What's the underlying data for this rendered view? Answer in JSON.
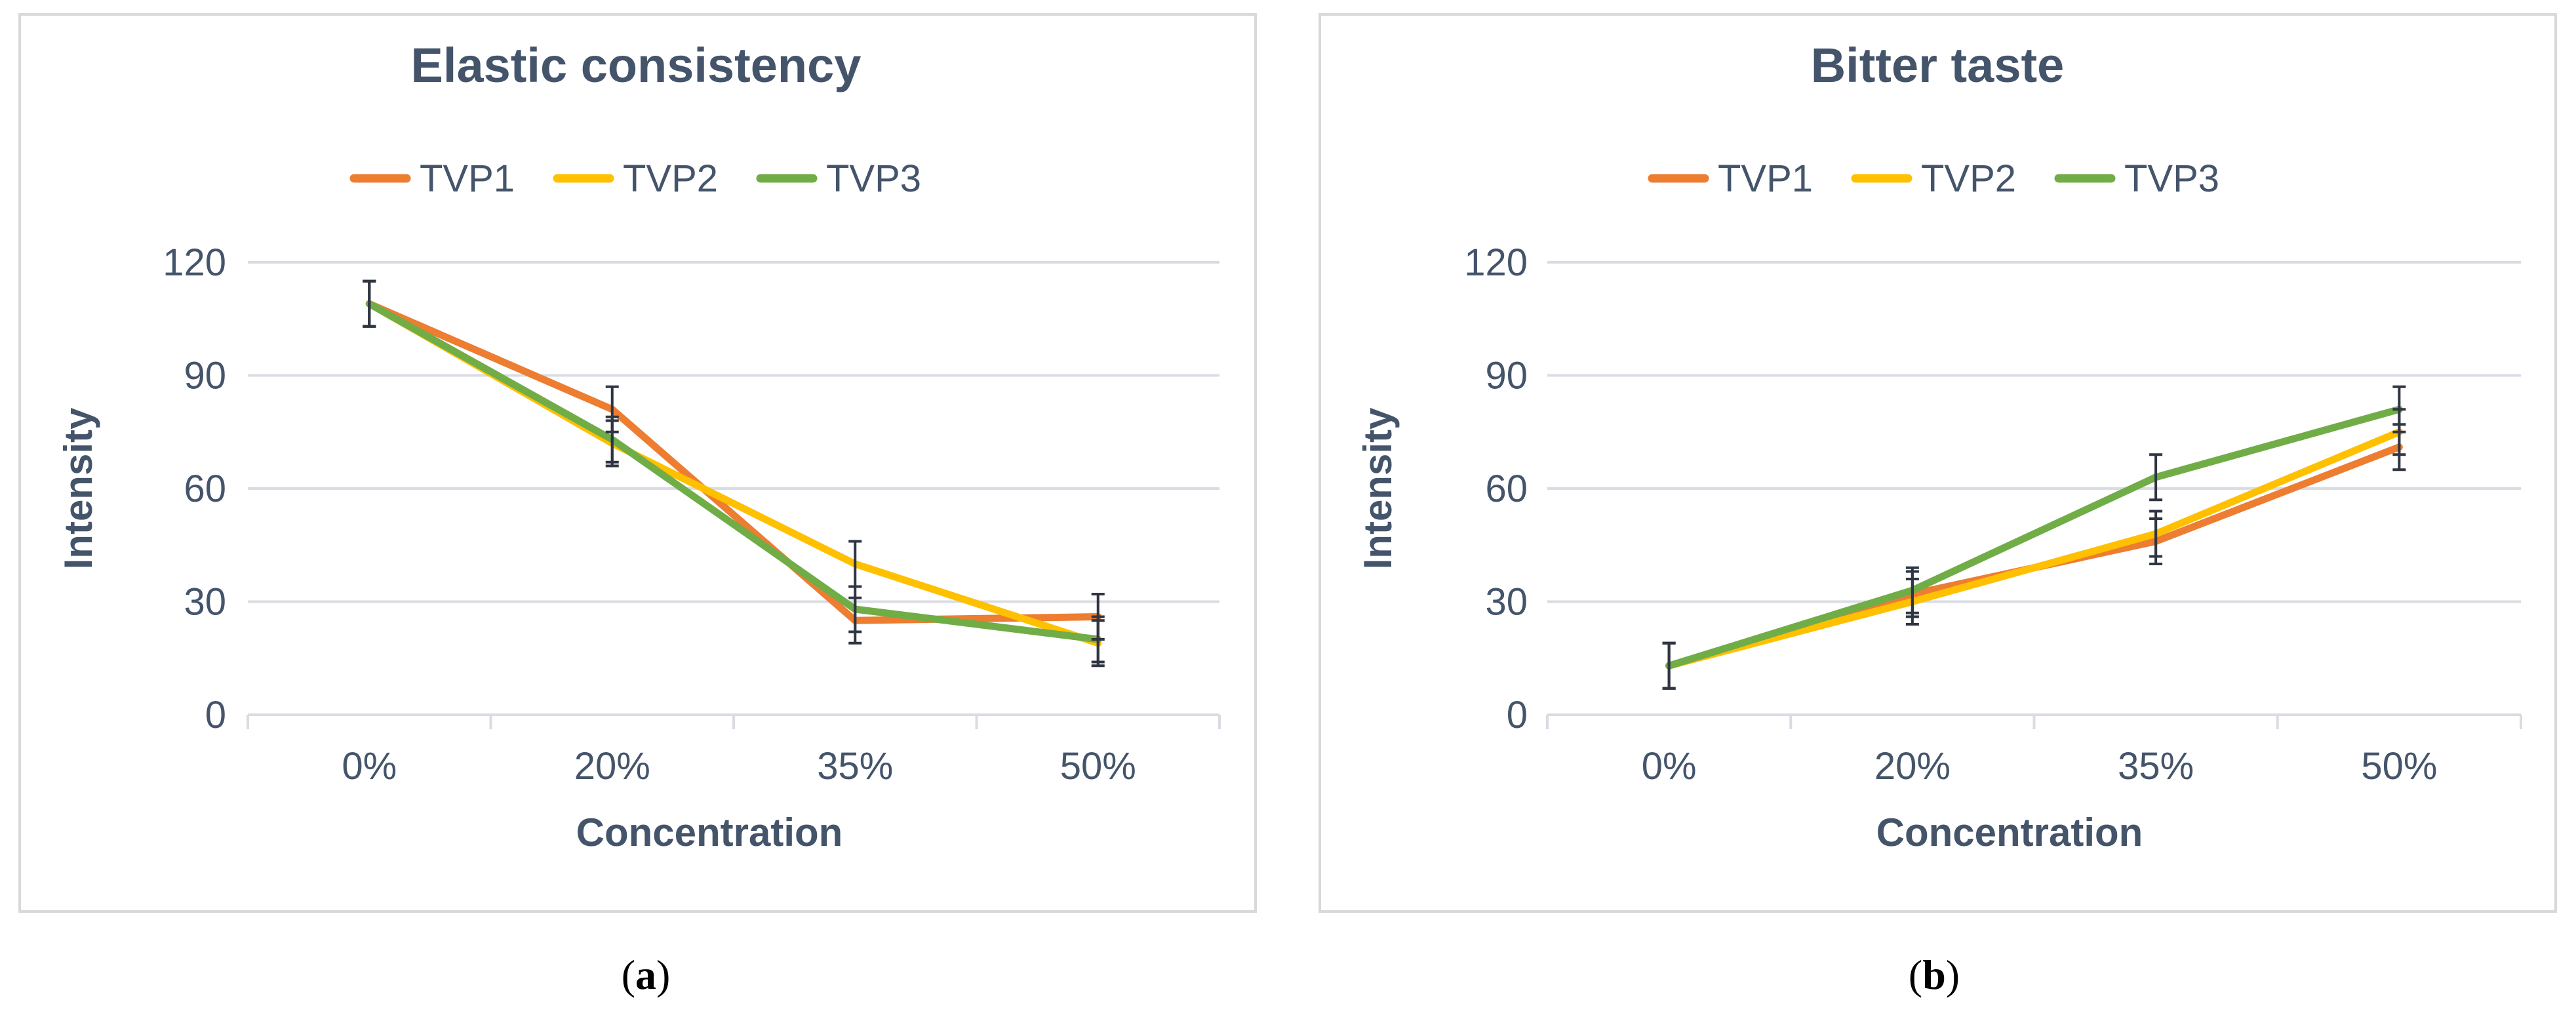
{
  "colors": {
    "TVP1": "#ed7d31",
    "TVP2": "#ffc000",
    "TVP3": "#70ad47",
    "text": "#44546a",
    "grid": "#d9dce3",
    "frame": "#d9d9d9",
    "error_bar": "#2f3542"
  },
  "chart_data": [
    {
      "type": "line",
      "title": "Elastic consistency",
      "xlabel": "Concentration",
      "ylabel": "Intensity",
      "categories": [
        "0%",
        "20%",
        "35%",
        "50%"
      ],
      "ylim": [
        0,
        120
      ],
      "yticks": [
        0,
        30,
        60,
        90,
        120
      ],
      "ytick_labels": [
        "0",
        "30",
        "60",
        "90",
        "120"
      ],
      "grid": true,
      "legend_position": "top",
      "series": [
        {
          "name": "TVP1",
          "color_key": "TVP1",
          "values": [
            109,
            81,
            25,
            26
          ],
          "errors": [
            6,
            6,
            6,
            6
          ]
        },
        {
          "name": "TVP2",
          "color_key": "TVP2",
          "values": [
            109,
            72,
            40,
            19
          ],
          "errors": [
            6,
            6,
            6,
            6
          ]
        },
        {
          "name": "TVP3",
          "color_key": "TVP3",
          "values": [
            109,
            73,
            28,
            20
          ],
          "errors": [
            6,
            6,
            6,
            6
          ]
        }
      ],
      "caption_open": "(",
      "caption_letter": "a",
      "caption_close": ")"
    },
    {
      "type": "line",
      "title": "Bitter taste",
      "xlabel": "Concentration",
      "ylabel": "Intensity",
      "categories": [
        "0%",
        "20%",
        "35%",
        "50%"
      ],
      "ylim": [
        0,
        120
      ],
      "yticks": [
        0,
        30,
        60,
        90,
        120
      ],
      "ytick_labels": [
        "0",
        "30",
        "60",
        "90",
        "120"
      ],
      "grid": true,
      "legend_position": "top",
      "series": [
        {
          "name": "TVP1",
          "color_key": "TVP1",
          "values": [
            13,
            32,
            46,
            71
          ],
          "errors": [
            6,
            6,
            6,
            6
          ]
        },
        {
          "name": "TVP2",
          "color_key": "TVP2",
          "values": [
            13,
            30,
            48,
            75
          ],
          "errors": [
            6,
            6,
            6,
            6
          ]
        },
        {
          "name": "TVP3",
          "color_key": "TVP3",
          "values": [
            13,
            33,
            63,
            81
          ],
          "errors": [
            6,
            6,
            6,
            6
          ]
        }
      ],
      "caption_open": "(",
      "caption_letter": "b",
      "caption_close": ")"
    }
  ]
}
